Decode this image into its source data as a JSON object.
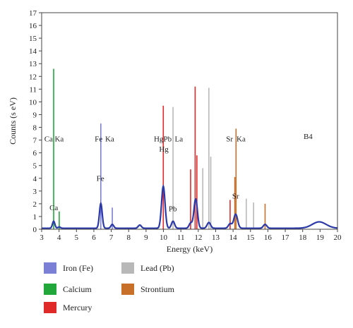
{
  "chart_data": {
    "type": "spectrum",
    "xlabel": "Energy (keV)",
    "ylabel": "Counts (s eV)",
    "xlim": [
      3,
      20
    ],
    "ylim": [
      0,
      17
    ],
    "x_ticks": [
      3,
      4,
      5,
      6,
      7,
      8,
      9,
      10,
      11,
      12,
      13,
      14,
      15,
      16,
      17,
      18,
      19,
      20
    ],
    "y_ticks": [
      0,
      1,
      2,
      3,
      4,
      5,
      6,
      7,
      8,
      9,
      10,
      11,
      12,
      13,
      14,
      15,
      16,
      17
    ],
    "grid": false,
    "colors": {
      "calcium": "#22a83a",
      "iron": "#7b7fd6",
      "mercury": "#e02a2a",
      "lead": "#b8b8b8",
      "strontium": "#c8702a",
      "spectrum": "#2b3aa8"
    },
    "reference_lines": [
      {
        "element": "calcium",
        "x": 3.69,
        "y": 12.6
      },
      {
        "element": "calcium",
        "x": 4.01,
        "y": 1.4
      },
      {
        "element": "iron",
        "x": 6.4,
        "y": 8.3
      },
      {
        "element": "iron",
        "x": 7.06,
        "y": 1.7
      },
      {
        "element": "mercury",
        "x": 9.99,
        "y": 9.7
      },
      {
        "element": "mercury",
        "x": 11.56,
        "y": 4.7
      },
      {
        "element": "mercury",
        "x": 11.82,
        "y": 11.2
      },
      {
        "element": "mercury",
        "x": 11.92,
        "y": 5.8
      },
      {
        "element": "mercury",
        "x": 13.83,
        "y": 2.3
      },
      {
        "element": "lead",
        "x": 10.55,
        "y": 9.6
      },
      {
        "element": "lead",
        "x": 12.26,
        "y": 4.8
      },
      {
        "element": "lead",
        "x": 12.61,
        "y": 11.1
      },
      {
        "element": "lead",
        "x": 12.72,
        "y": 5.7
      },
      {
        "element": "lead",
        "x": 14.76,
        "y": 2.4
      },
      {
        "element": "lead",
        "x": 15.18,
        "y": 2.1
      },
      {
        "element": "strontium",
        "x": 14.17,
        "y": 7.9
      },
      {
        "element": "strontium",
        "x": 14.1,
        "y": 4.1
      },
      {
        "element": "strontium",
        "x": 15.84,
        "y": 2.0
      }
    ],
    "spectrum": {
      "baseline": 0.08,
      "peaks": [
        {
          "x": 3.69,
          "height": 0.55,
          "width": 0.07
        },
        {
          "x": 4.01,
          "height": 0.1,
          "width": 0.07
        },
        {
          "x": 6.4,
          "height": 1.95,
          "width": 0.08
        },
        {
          "x": 7.06,
          "height": 0.3,
          "width": 0.08
        },
        {
          "x": 8.64,
          "height": 0.25,
          "width": 0.09
        },
        {
          "x": 9.99,
          "height": 3.3,
          "width": 0.1
        },
        {
          "x": 10.55,
          "height": 0.55,
          "width": 0.09
        },
        {
          "x": 11.56,
          "height": 0.4,
          "width": 0.09
        },
        {
          "x": 11.85,
          "height": 2.3,
          "width": 0.1
        },
        {
          "x": 12.61,
          "height": 0.45,
          "width": 0.1
        },
        {
          "x": 13.83,
          "height": 0.35,
          "width": 0.1
        },
        {
          "x": 14.15,
          "height": 1.1,
          "width": 0.11
        },
        {
          "x": 15.84,
          "height": 0.3,
          "width": 0.1
        },
        {
          "x": 18.95,
          "height": 0.5,
          "width": 0.4
        }
      ]
    },
    "annotations": [
      {
        "text": "Ca",
        "x": 3.15,
        "y": 6.9
      },
      {
        "text": "Ka",
        "x": 3.75,
        "y": 6.9
      },
      {
        "text": "Fe",
        "x": 6.05,
        "y": 6.9
      },
      {
        "text": "Ka",
        "x": 6.65,
        "y": 6.9
      },
      {
        "text": "Hg",
        "x": 9.45,
        "y": 6.9
      },
      {
        "text": "Pb",
        "x": 10.0,
        "y": 6.9
      },
      {
        "text": "La",
        "x": 10.65,
        "y": 6.9
      },
      {
        "text": "Sr",
        "x": 13.6,
        "y": 6.9
      },
      {
        "text": "Ka",
        "x": 14.2,
        "y": 6.9
      },
      {
        "text": "B4",
        "x": 18.05,
        "y": 7.1
      },
      {
        "text": "Ca",
        "x": 3.45,
        "y": 1.5
      },
      {
        "text": "Fe",
        "x": 6.15,
        "y": 3.8
      },
      {
        "text": "Hg",
        "x": 9.75,
        "y": 6.1
      },
      {
        "text": "Pb",
        "x": 10.3,
        "y": 1.4
      },
      {
        "text": "Sr",
        "x": 13.95,
        "y": 2.4
      }
    ],
    "legend": [
      {
        "label": "Iron (Fe)",
        "element": "iron"
      },
      {
        "label": "Lead (Pb)",
        "element": "lead"
      },
      {
        "label": "Calcium",
        "element": "calcium"
      },
      {
        "label": "Strontium",
        "element": "strontium"
      },
      {
        "label": "Mercury",
        "element": "mercury"
      }
    ]
  }
}
